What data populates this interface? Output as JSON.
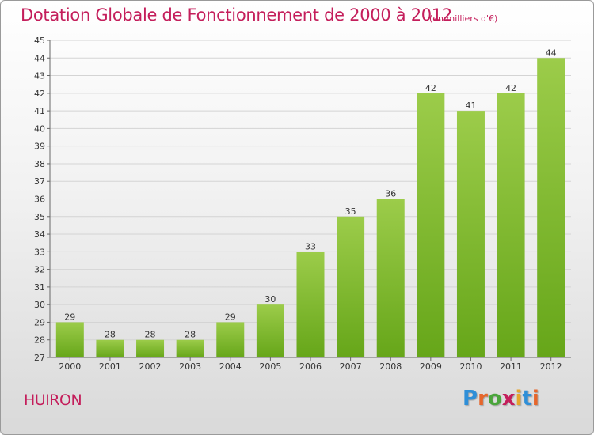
{
  "chart_data": {
    "type": "bar",
    "title": "Dotation Globale de Fonctionnement de 2000 à 2012",
    "subtitle": "(en milliers d'€)",
    "categories": [
      "2000",
      "2001",
      "2002",
      "2003",
      "2004",
      "2005",
      "2006",
      "2007",
      "2008",
      "2009",
      "2010",
      "2011",
      "2012"
    ],
    "values": [
      29,
      28,
      28,
      28,
      29,
      30,
      33,
      35,
      36,
      42,
      41,
      42,
      44
    ],
    "ylim": [
      27,
      45
    ],
    "yticks": [
      27,
      28,
      29,
      30,
      31,
      32,
      33,
      34,
      35,
      36,
      37,
      38,
      39,
      40,
      41,
      42,
      43,
      44,
      45
    ],
    "grid": true,
    "bar_color_top": "#9ccc4a",
    "bar_color_bottom": "#66a619",
    "title_color": "#c41e5b"
  },
  "footer": {
    "commune": "HUIRON",
    "logo_text": "Proxiti"
  }
}
